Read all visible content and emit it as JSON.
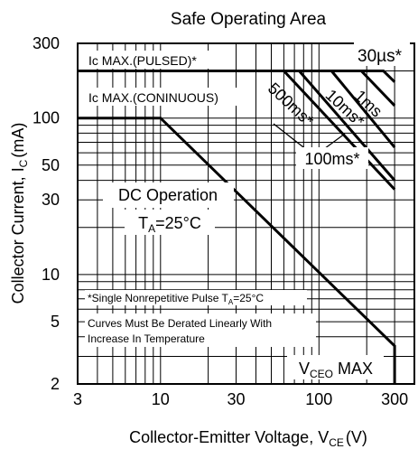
{
  "chart_data": {
    "type": "line",
    "title": "Safe Operating Area",
    "xlabel": "Collector-Emitter Voltage, V",
    "xlabel_sub": "CE",
    "xlabel_unit": "(V)",
    "ylabel": "Collector Current, I",
    "ylabel_sub": "C",
    "ylabel_unit": "(mA)",
    "x_scale": "log",
    "y_scale": "log",
    "xlim": [
      3,
      400
    ],
    "ylim": [
      2,
      300
    ],
    "x_ticks": [
      3,
      10,
      30,
      100,
      300
    ],
    "x_tick_labels": [
      "3",
      "10",
      "30",
      "100",
      "300"
    ],
    "y_ticks": [
      2,
      5,
      10,
      30,
      50,
      100,
      300
    ],
    "y_tick_labels": [
      "2",
      "5",
      "10",
      "30",
      "50",
      "100",
      "300"
    ],
    "grid": true,
    "series": [
      {
        "name": "DC Operation",
        "x": [
          3,
          10,
          300,
          300
        ],
        "y": [
          100,
          100,
          3.5,
          2
        ]
      },
      {
        "name": "100ms*",
        "x": [
          60,
          300
        ],
        "y": [
          200,
          35
        ]
      },
      {
        "name": "500ms*",
        "x": [
          75,
          300
        ],
        "y": [
          200,
          40
        ]
      },
      {
        "name": "10ms*",
        "x": [
          120,
          300
        ],
        "y": [
          200,
          65
        ]
      },
      {
        "name": "1ms",
        "x": [
          185,
          300
        ],
        "y": [
          200,
          120
        ]
      },
      {
        "name": "30µs*",
        "x": [
          3,
          255,
          300
        ],
        "y": [
          200,
          200,
          170
        ]
      }
    ],
    "annotations": {
      "ic_max_pulsed": "Ic MAX.(PULSED)*",
      "ic_max_continuous": "Ic MAX.(CONINUOUS)",
      "dc_operation": "DC Operation",
      "ta_prefix": "T",
      "ta_sub": "A",
      "ta_value": "=25°C",
      "label_30us": "30µs*",
      "label_1ms": "1ms",
      "label_10ms": "10ms*",
      "label_500ms": "500ms*",
      "label_100ms": "100ms*",
      "note_single_prefix": "*Single Nonrepetitive Pulse T",
      "note_single_sub": "A",
      "note_single_suffix": "=25°C",
      "note_derate_1": "Curves Must Be Derated Linearly With",
      "note_derate_2": "Increase In Temperature",
      "vceo_prefix": "V",
      "vceo_sub": "CEO",
      "vceo_suffix": " MAX"
    }
  }
}
